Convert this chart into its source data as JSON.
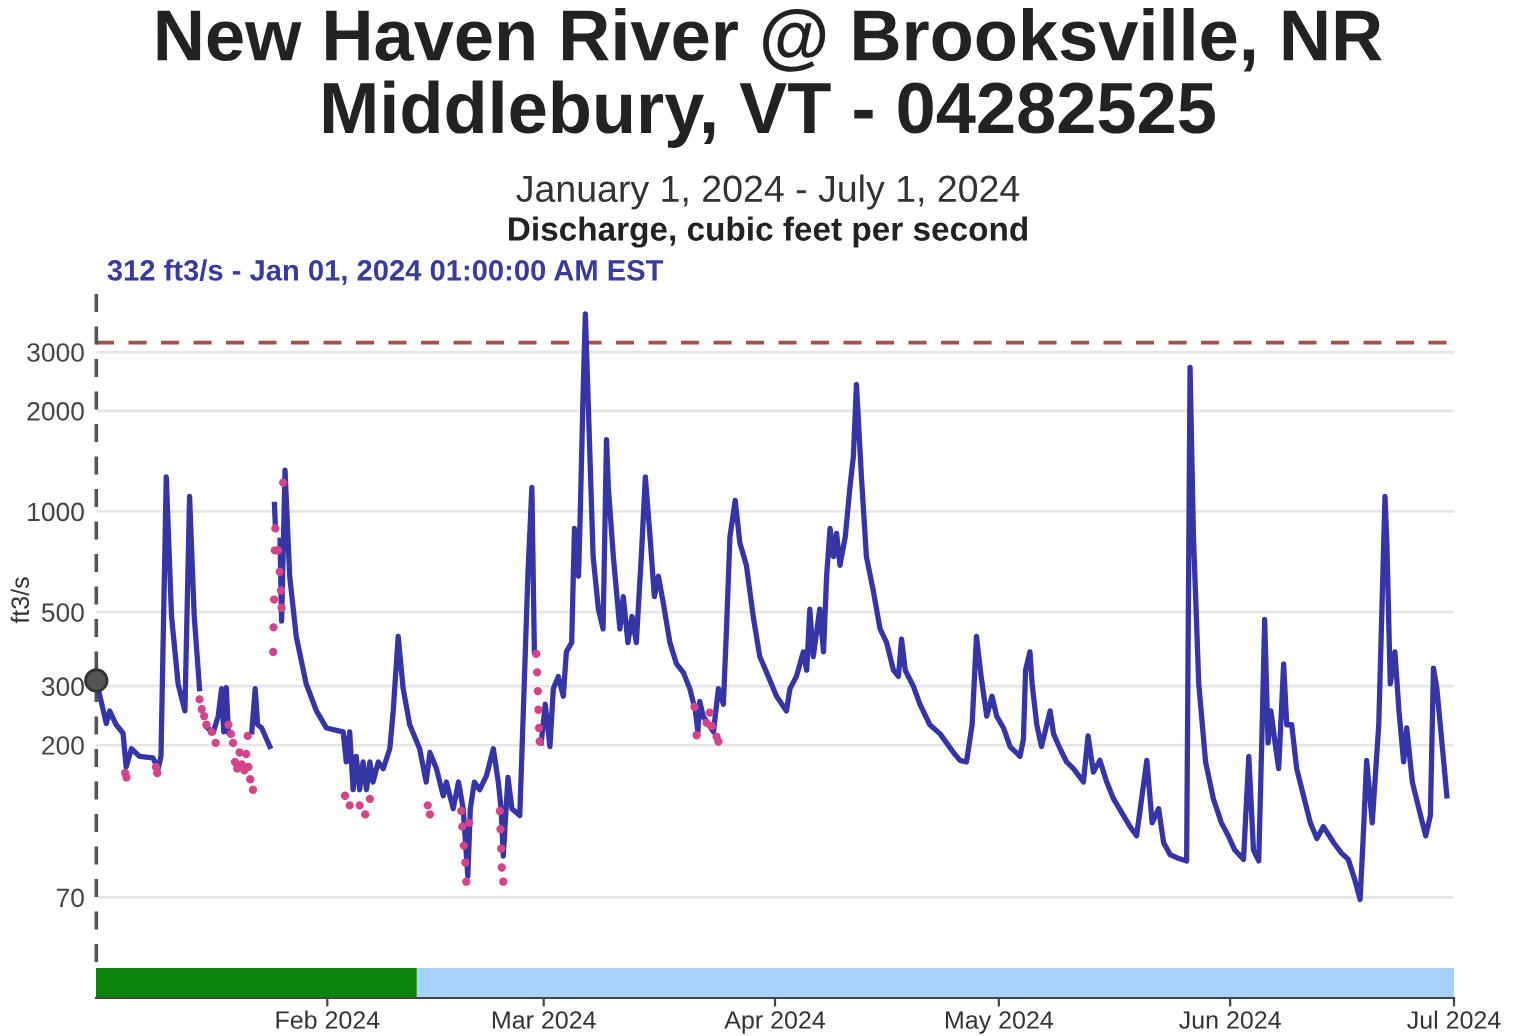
{
  "chart_data": {
    "type": "line",
    "title": "New Haven River @ Brooksville, NR Middlebury, VT - 04282525",
    "subtitle": "January 1, 2024 - July 1, 2024",
    "ylabel": "ft3/s",
    "annotations": [
      "Discharge, cubic feet per second",
      "312 ft3/s - Jan 01, 2024 01:00:00 AM EST"
    ],
    "series": [
      {
        "color": "#3535a6",
        "x": [
          "2024-01-01T01:00",
          "2024-01-02T09:00",
          "2024-01-02T20:00",
          "2024-01-03T17:00",
          "2024-01-04T15:00",
          "2024-01-05T01:00",
          "2024-01-05T18:00",
          "2024-01-06T20:00",
          "2024-01-08T15:00",
          "2024-01-09T08:00",
          "2024-01-09T17:00",
          "2024-01-10T10:00",
          "2024-01-11T03:00",
          "2024-01-12T00:00",
          "2024-01-12T22:00",
          "2024-01-13T13:00",
          "2024-01-14T04:00",
          "2024-01-14T21:00",
          "2024-01-15T10:00",
          "2024-01-15T23:00",
          "2024-01-16T17:00",
          "2024-01-17T09:00",
          "2024-01-17T20:00",
          "2024-01-18T03:00",
          "2024-01-18T11:00",
          "2024-01-18T18:00",
          "2024-01-20T08:00",
          "2024-01-21T21:00",
          "2024-01-22T08:00",
          "2024-01-22T16:00",
          "2024-01-23T05:00",
          "2024-01-24T07:00",
          "2024-01-24T15:00",
          "2024-01-24T22:00",
          "2024-01-25T01:00",
          "2024-01-25T08:00",
          "2024-01-25T16:00",
          "2024-01-25T21:00",
          "2024-01-26T08:00",
          "2024-01-26T23:00",
          "2024-01-27T20:00",
          "2024-01-29T04:00",
          "2024-01-30T13:00",
          "2024-01-31T21:00",
          "2024-02-03T03:00",
          "2024-02-03T13:00",
          "2024-02-04T00:00",
          "2024-02-04T11:00",
          "2024-02-04T21:00",
          "2024-02-05T08:00",
          "2024-02-05T19:00",
          "2024-02-06T06:00",
          "2024-02-06T17:00",
          "2024-02-07T03:00",
          "2024-02-07T20:00",
          "2024-02-08T12:00",
          "2024-02-09T09:00",
          "2024-02-09T20:00",
          "2024-02-10T12:00",
          "2024-02-11T04:00",
          "2024-02-12T01:00",
          "2024-02-13T09:00",
          "2024-02-14T06:00",
          "2024-02-14T18:00",
          "2024-02-15T15:00",
          "2024-02-16T13:00",
          "2024-02-16T23:00",
          "2024-02-17T21:00",
          "2024-02-18T14:00",
          "2024-02-19T05:00",
          "2024-02-19T20:00",
          "2024-02-20T04:00",
          "2024-02-20T17:00",
          "2024-02-21T10:00",
          "2024-02-22T08:00",
          "2024-02-23T06:00",
          "2024-02-23T22:00",
          "2024-02-24T07:00",
          "2024-02-24T14:00",
          "2024-02-25T05:00",
          "2024-02-25T18:00",
          "2024-02-26T19:00",
          "2024-02-27T06:00",
          "2024-02-27T21:00",
          "2024-02-28T10:00",
          "2024-02-28T18:00",
          "2024-02-29T05:00",
          "2024-02-29T16:00",
          "2024-03-01T05:00",
          "2024-03-01T20:00",
          "2024-03-02T07:00",
          "2024-03-02T23:00",
          "2024-03-03T15:00",
          "2024-03-04T01:00",
          "2024-03-04T18:00",
          "2024-03-05T03:00",
          "2024-03-05T16:00",
          "2024-03-05T20:00",
          "2024-03-06T07:00",
          "2024-03-06T14:00",
          "2024-03-06T22:00",
          "2024-03-07T15:00",
          "2024-03-08T08:00",
          "2024-03-08T23:00",
          "2024-03-09T10:00",
          "2024-03-09T16:00",
          "2024-03-10T08:00",
          "2024-03-11T05:00",
          "2024-03-11T16:00",
          "2024-03-12T07:00",
          "2024-03-12T20:00",
          "2024-03-13T10:00",
          "2024-03-14T02:00",
          "2024-03-14T15:00",
          "2024-03-15T06:00",
          "2024-03-15T20:00",
          "2024-03-16T09:00",
          "2024-03-17T01:00",
          "2024-03-17T22:00",
          "2024-03-18T19:00",
          "2024-03-19T17:00",
          "2024-03-20T14:00",
          "2024-03-21T08:00",
          "2024-03-21T16:00",
          "2024-03-21T22:00",
          "2024-03-22T09:00",
          "2024-03-23T18:00",
          "2024-03-24T10:00",
          "2024-03-25T02:00",
          "2024-03-25T12:00",
          "2024-03-25T23:00",
          "2024-03-26T16:00",
          "2024-03-27T07:00",
          "2024-03-28T04:00",
          "2024-03-29T02:00",
          "2024-03-29T23:00",
          "2024-03-30T21:00",
          "2024-04-01T05:00",
          "2024-04-02T13:00",
          "2024-04-03T00:00",
          "2024-04-03T21:00",
          "2024-04-04T19:00",
          "2024-04-05T06:00",
          "2024-04-05T16:00",
          "2024-04-06T03:00",
          "2024-04-07T00:00",
          "2024-04-07T12:00",
          "2024-04-07T22:00",
          "2024-04-08T09:00",
          "2024-04-08T20:00",
          "2024-04-09T06:00",
          "2024-04-09T17:00",
          "2024-04-10T10:00",
          "2024-04-11T01:00",
          "2024-04-11T12:00",
          "2024-04-11T22:00",
          "2024-04-12T14:00",
          "2024-04-13T06:00",
          "2024-04-14T04:00",
          "2024-04-15T02:00",
          "2024-04-15T23:00",
          "2024-04-16T21:00",
          "2024-04-17T13:00",
          "2024-04-17T23:00",
          "2024-04-18T11:00",
          "2024-04-19T13:00",
          "2024-04-20T10:00",
          "2024-04-21T18:00",
          "2024-04-23T03:00",
          "2024-04-24T00:00",
          "2024-04-24T22:00",
          "2024-04-25T19:00",
          "2024-04-26T16:00",
          "2024-04-27T10:00",
          "2024-04-28T00:00",
          "2024-04-28T15:00",
          "2024-04-29T09:00",
          "2024-04-30T02:00",
          "2024-04-30T17:00",
          "2024-05-01T15:00",
          "2024-05-02T12:00",
          "2024-05-03T20:00",
          "2024-05-04T07:00",
          "2024-05-04T14:00",
          "2024-05-05T04:00",
          "2024-05-05T11:00",
          "2024-05-06T02:00",
          "2024-05-06T17:00",
          "2024-05-07T21:00",
          "2024-05-08T08:00",
          "2024-05-09T05:00",
          "2024-05-10T02:00",
          "2024-05-11T00:00",
          "2024-05-12T08:00",
          "2024-05-12T23:00",
          "2024-05-13T16:00",
          "2024-05-14T13:00",
          "2024-05-15T11:00",
          "2024-05-16T09:00",
          "2024-05-17T17:00",
          "2024-05-18T14:00",
          "2024-05-19T11:00",
          "2024-05-20T20:00",
          "2024-05-21T13:00",
          "2024-05-22T10:00",
          "2024-05-23T02:00",
          "2024-05-23T23:00",
          "2024-05-24T20:00",
          "2024-05-26T04:00",
          "2024-05-26T15:00",
          "2024-05-27T02:00",
          "2024-05-27T19:00",
          "2024-05-28T17:00",
          "2024-05-29T18:00",
          "2024-05-30T20:00",
          "2024-05-31T18:00",
          "2024-06-01T15:00",
          "2024-06-02T19:00",
          "2024-06-03T12:00",
          "2024-06-04T03:00",
          "2024-06-04T20:00",
          "2024-06-05T07:00",
          "2024-06-05T15:00",
          "2024-06-06T02:00",
          "2024-06-06T11:00",
          "2024-06-06T23:00",
          "2024-06-07T12:00",
          "2024-06-08T04:00",
          "2024-06-08T14:00",
          "2024-06-09T06:00",
          "2024-06-09T22:00",
          "2024-06-10T20:00",
          "2024-06-11T18:00",
          "2024-06-12T15:00",
          "2024-06-13T12:00",
          "2024-06-14T21:00",
          "2024-06-15T22:00",
          "2024-06-16T20:00",
          "2024-06-17T17:00",
          "2024-06-18T10:00",
          "2024-06-18T21:00",
          "2024-06-19T07:00",
          "2024-06-20T01:00",
          "2024-06-20T22:00",
          "2024-06-21T18:00",
          "2024-06-22T00:00",
          "2024-06-22T11:00",
          "2024-06-23T02:00",
          "2024-06-23T15:00",
          "2024-06-24T06:00",
          "2024-06-24T16:00",
          "2024-06-25T10:00",
          "2024-06-26T07:00",
          "2024-06-27T05:00",
          "2024-06-27T20:00",
          "2024-06-28T06:00",
          "2024-06-28T17:00",
          "2024-06-29T15:00",
          "2024-06-30T01:00"
        ],
        "values": [
          312,
          232,
          253,
          230,
          217,
          172,
          195,
          185,
          183,
          170,
          185,
          1270,
          485,
          305,
          253,
          1110,
          485,
          295,
          null,
          225,
          218,
          244,
          295,
          219,
          297,
          219,
          null,
          219,
          295,
          230,
          225,
          198,
          null,
          1050,
          900,
          null,
          820,
          470,
          1330,
          640,
          423,
          305,
          253,
          225,
          219,
          178,
          219,
          147,
          185,
          147,
          178,
          147,
          178,
          155,
          178,
          170,
          195,
          253,
          423,
          295,
          230,
          195,
          155,
          190,
          170,
          141,
          155,
          129,
          155,
          129,
          81,
          129,
          155,
          147,
          162,
          195,
          155,
          129,
          93,
          160,
          129,
          123,
          244,
          640,
          1180,
          380,
          null,
          203,
          265,
          198,
          295,
          321,
          280,
          380,
          405,
          890,
          640,
          860,
          2300,
          3900,
          2300,
          733,
          510,
          445,
          1640,
          1180,
          733,
          445,
          556,
          405,
          485,
          405,
          733,
          1270,
          840,
          556,
          640,
          530,
          405,
          350,
          330,
          295,
          253,
          219,
          270,
          244,
          219,
          295,
          265,
          445,
          840,
          1080,
          805,
          690,
          485,
          368,
          330,
          280,
          253,
          295,
          321,
          380,
          335,
          510,
          368,
          510,
          380,
          640,
          890,
          733,
          860,
          690,
          840,
          1180,
          1460,
          2400,
          1270,
          733,
          580,
          445,
          405,
          335,
          321,
          415,
          335,
          300,
          265,
          230,
          216,
          203,
          190,
          180,
          178,
          230,
          423,
          321,
          244,
          280,
          244,
          225,
          198,
          185,
          208,
          335,
          380,
          305,
          230,
          198,
          253,
          216,
          195,
          178,
          170,
          155,
          213,
          166,
          180,
          155,
          138,
          123,
          114,
          107,
          180,
          117,
          129,
          102,
          94,
          92,
          90,
          2700,
          840,
          305,
          178,
          138,
          117,
          107,
          97,
          91,
          185,
          97,
          90,
          230,
          475,
          203,
          253,
          208,
          170,
          350,
          230,
          230,
          170,
          141,
          117,
          105,
          114,
          102,
          95,
          91,
          79,
          69,
          111,
          180,
          117,
          230,
          1110,
          805,
          305,
          380,
          253,
          178,
          225,
          155,
          129,
          107,
          123,
          340,
          295,
          178,
          141
        ]
      },
      {
        "type": "scatter",
        "color": "#d4448a",
        "marker": "circle",
        "x": [
          "2024-01-04T22:00",
          "2024-01-05T02:00",
          "2024-01-09T01:00",
          "2024-01-09T05:00",
          "2024-01-14T21:00",
          "2024-01-15T04:00",
          "2024-01-15T12:00",
          "2024-01-15T19:00",
          "2024-01-16T12:00",
          "2024-01-17T01:00",
          "2024-01-18T18:00",
          "2024-01-19T02:00",
          "2024-01-19T09:00",
          "2024-01-19T15:00",
          "2024-01-19T22:00",
          "2024-01-20T06:00",
          "2024-01-20T13:00",
          "2024-01-20T21:00",
          "2024-01-21T03:00",
          "2024-01-21T08:00",
          "2024-01-21T10:00",
          "2024-01-21T16:00",
          "2024-01-22T01:00",
          "2024-01-24T18:00",
          "2024-01-24T19:00",
          "2024-01-24T21:00",
          "2024-01-24T23:00",
          "2024-01-25T01:00",
          "2024-01-25T10:00",
          "2024-01-25T15:00",
          "2024-01-25T19:00",
          "2024-01-25T21:00",
          "2024-01-26T02:00",
          "2024-02-03T09:00",
          "2024-02-04T00:00",
          "2024-02-05T08:00",
          "2024-02-06T02:00",
          "2024-02-06T17:00",
          "2024-02-14T11:00",
          "2024-02-14T18:00",
          "2024-02-18T23:00",
          "2024-02-19T02:00",
          "2024-02-19T07:00",
          "2024-02-19T12:00",
          "2024-02-19T15:00",
          "2024-02-20T00:00",
          "2024-02-24T03:00",
          "2024-02-24T05:00",
          "2024-02-24T07:00",
          "2024-02-24T09:00",
          "2024-02-24T14:00",
          "2024-02-29T00:00",
          "2024-02-29T03:00",
          "2024-02-29T05:00",
          "2024-02-29T07:00",
          "2024-02-29T09:00",
          "2024-02-29T11:00",
          "2024-03-21T05:00",
          "2024-03-21T12:00",
          "2024-03-22T20:00",
          "2024-03-23T06:00",
          "2024-03-23T13:00",
          "2024-03-24T04:00",
          "2024-03-24T10:00"
        ],
        "values": [
          165,
          160,
          172,
          165,
          274,
          256,
          244,
          230,
          219,
          203,
          230,
          216,
          203,
          178,
          170,
          190,
          175,
          168,
          188,
          213,
          172,
          158,
          147,
          380,
          450,
          545,
          765,
          890,
          765,
          660,
          580,
          515,
          1220,
          141,
          132,
          132,
          124,
          138,
          132,
          124,
          127,
          114,
          100,
          89,
          78,
          117,
          127,
          112,
          98,
          86,
          78,
          375,
          330,
          290,
          255,
          225,
          205,
          260,
          214,
          233,
          250,
          228,
          212,
          205
        ]
      },
      {
        "type": "scatter",
        "color": "#555555",
        "marker": "circle",
        "x": [
          "2024-01-01T01:00"
        ],
        "values": [
          312
        ]
      }
    ],
    "xlim": [
      "2024-01-01",
      "2024-07-01"
    ],
    "xticks": [
      {
        "value": "2024-02-01",
        "label": "Feb 2024"
      },
      {
        "value": "2024-03-01",
        "label": "Mar 2024"
      },
      {
        "value": "2024-04-01",
        "label": "Apr 2024"
      },
      {
        "value": "2024-05-01",
        "label": "May 2024"
      },
      {
        "value": "2024-06-01",
        "label": "Jun 2024"
      },
      {
        "value": "2024-07-01",
        "label": "Jul 2024"
      }
    ],
    "ylim": [
      35,
      4600
    ],
    "yticks": [
      70,
      200,
      300,
      500,
      1000,
      2000,
      3000
    ],
    "log": "y",
    "grid": "y",
    "ref_lines": [
      {
        "axis": "y",
        "value": 3200,
        "color": "#a0524b",
        "line_style": "dashed"
      },
      {
        "axis": "x",
        "value": "2024-01-01T01:00",
        "color": "#555555",
        "line_style": "dashed"
      }
    ],
    "bands": [
      {
        "axis": "x",
        "from": "2024-01-01",
        "to": "2024-02-13",
        "color": "#0a850a"
      },
      {
        "axis": "x",
        "from": "2024-02-13",
        "to": "2024-07-01",
        "color": "#a6d2fb"
      }
    ]
  }
}
